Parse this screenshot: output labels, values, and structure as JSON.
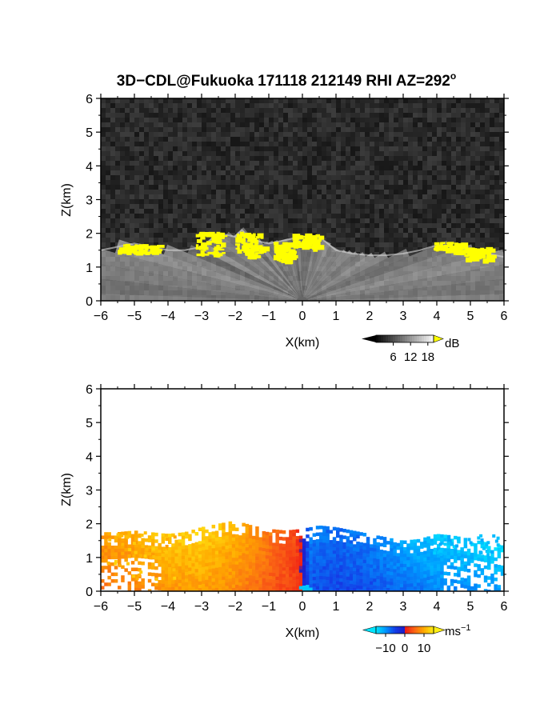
{
  "chart_data": [
    {
      "type": "heatmap",
      "title": "3D−CDL@Fukuoka 171118 212149 RHI AZ=292",
      "title_superscript": "o",
      "xlabel": "X(km)",
      "ylabel": "Z(km)",
      "xlim": [
        -6,
        6
      ],
      "ylim": [
        0,
        6
      ],
      "x_ticks": [
        "−6",
        "−5",
        "−4",
        "−3",
        "−2",
        "−1",
        "0",
        "1",
        "2",
        "3",
        "4",
        "5",
        "6"
      ],
      "y_ticks": [
        "0",
        "1",
        "2",
        "3",
        "4",
        "5",
        "6"
      ],
      "colorbar": {
        "unit": "dB",
        "ticks": [
          "6",
          "12",
          "18"
        ],
        "range": [
          0,
          20
        ],
        "colormap": "grayscale",
        "high_color": "#ffff00"
      },
      "noise_color": "#2a2a2a",
      "echo_top_km": [
        [
          -6,
          1.5
        ],
        [
          -5.5,
          1.6
        ],
        [
          -5,
          1.7
        ],
        [
          -4.5,
          1.6
        ],
        [
          -4,
          1.5
        ],
        [
          -3.5,
          1.5
        ],
        [
          -3,
          1.6
        ],
        [
          -2.5,
          2.0
        ],
        [
          -2,
          1.9
        ],
        [
          -1.8,
          2.1
        ],
        [
          -1.5,
          1.8
        ],
        [
          -1,
          1.7
        ],
        [
          -0.5,
          1.8
        ],
        [
          0,
          1.9
        ],
        [
          0.5,
          1.9
        ],
        [
          1,
          1.5
        ],
        [
          1.5,
          1.4
        ],
        [
          2,
          1.35
        ],
        [
          2.5,
          1.35
        ],
        [
          3,
          1.4
        ],
        [
          3.5,
          1.5
        ],
        [
          4,
          1.65
        ],
        [
          4.5,
          1.6
        ],
        [
          5,
          1.5
        ],
        [
          5.5,
          1.4
        ],
        [
          6,
          1.3
        ]
      ],
      "high_snr_patches_km": [
        {
          "x": [
            -5.5,
            -4.3
          ],
          "z": [
            1.45,
            1.7
          ]
        },
        {
          "x": [
            -3.2,
            -2.4
          ],
          "z": [
            1.4,
            2.05
          ]
        },
        {
          "x": [
            -2.0,
            -1.2
          ],
          "z": [
            1.35,
            2.1
          ]
        },
        {
          "x": [
            -0.9,
            -0.3
          ],
          "z": [
            1.2,
            1.75
          ]
        },
        {
          "x": [
            -0.3,
            0.5
          ],
          "z": [
            1.6,
            2.0
          ]
        },
        {
          "x": [
            3.9,
            4.8
          ],
          "z": [
            1.5,
            1.75
          ]
        },
        {
          "x": [
            4.8,
            5.6
          ],
          "z": [
            1.25,
            1.6
          ]
        }
      ]
    },
    {
      "type": "heatmap",
      "xlabel": "X(km)",
      "ylabel": "Z(km)",
      "xlim": [
        -6,
        6
      ],
      "ylim": [
        0,
        6
      ],
      "x_ticks": [
        "−6",
        "−5",
        "−4",
        "−3",
        "−2",
        "−1",
        "0",
        "1",
        "2",
        "3",
        "4",
        "5",
        "6"
      ],
      "y_ticks": [
        "0",
        "1",
        "2",
        "3",
        "4",
        "5",
        "6"
      ],
      "colorbar": {
        "unit": "ms",
        "unit_superscript": "−1",
        "ticks": [
          "−10",
          "0",
          "10"
        ],
        "range": [
          -15,
          15
        ],
        "colormap": "cyan-blue-red-orange-yellow"
      },
      "echo_top_km": [
        [
          -6,
          1.75
        ],
        [
          -5.5,
          1.75
        ],
        [
          -5,
          1.8
        ],
        [
          -4.5,
          1.75
        ],
        [
          -4,
          1.7
        ],
        [
          -3.5,
          1.75
        ],
        [
          -3,
          1.9
        ],
        [
          -2.5,
          2.0
        ],
        [
          -2,
          2.1
        ],
        [
          -1.5,
          1.95
        ],
        [
          -1,
          1.85
        ],
        [
          -0.5,
          1.8
        ],
        [
          0,
          1.85
        ],
        [
          0.5,
          1.95
        ],
        [
          1,
          1.9
        ],
        [
          1.5,
          1.8
        ],
        [
          2,
          1.7
        ],
        [
          2.5,
          1.6
        ],
        [
          3,
          1.5
        ],
        [
          3.5,
          1.55
        ],
        [
          4,
          1.7
        ],
        [
          4.5,
          1.65
        ],
        [
          5,
          1.55
        ],
        [
          5.5,
          1.45
        ],
        [
          6,
          1.35
        ]
      ],
      "radial_velocity_ms": [
        [
          -6,
          8
        ],
        [
          -4,
          11
        ],
        [
          -3,
          12
        ],
        [
          -2,
          10
        ],
        [
          -1,
          6
        ],
        [
          -0.2,
          3
        ],
        [
          0,
          0
        ],
        [
          0.2,
          -8
        ],
        [
          1,
          -7
        ],
        [
          2,
          -8
        ],
        [
          3,
          -10
        ],
        [
          4,
          -12
        ],
        [
          6,
          -13
        ]
      ]
    }
  ]
}
